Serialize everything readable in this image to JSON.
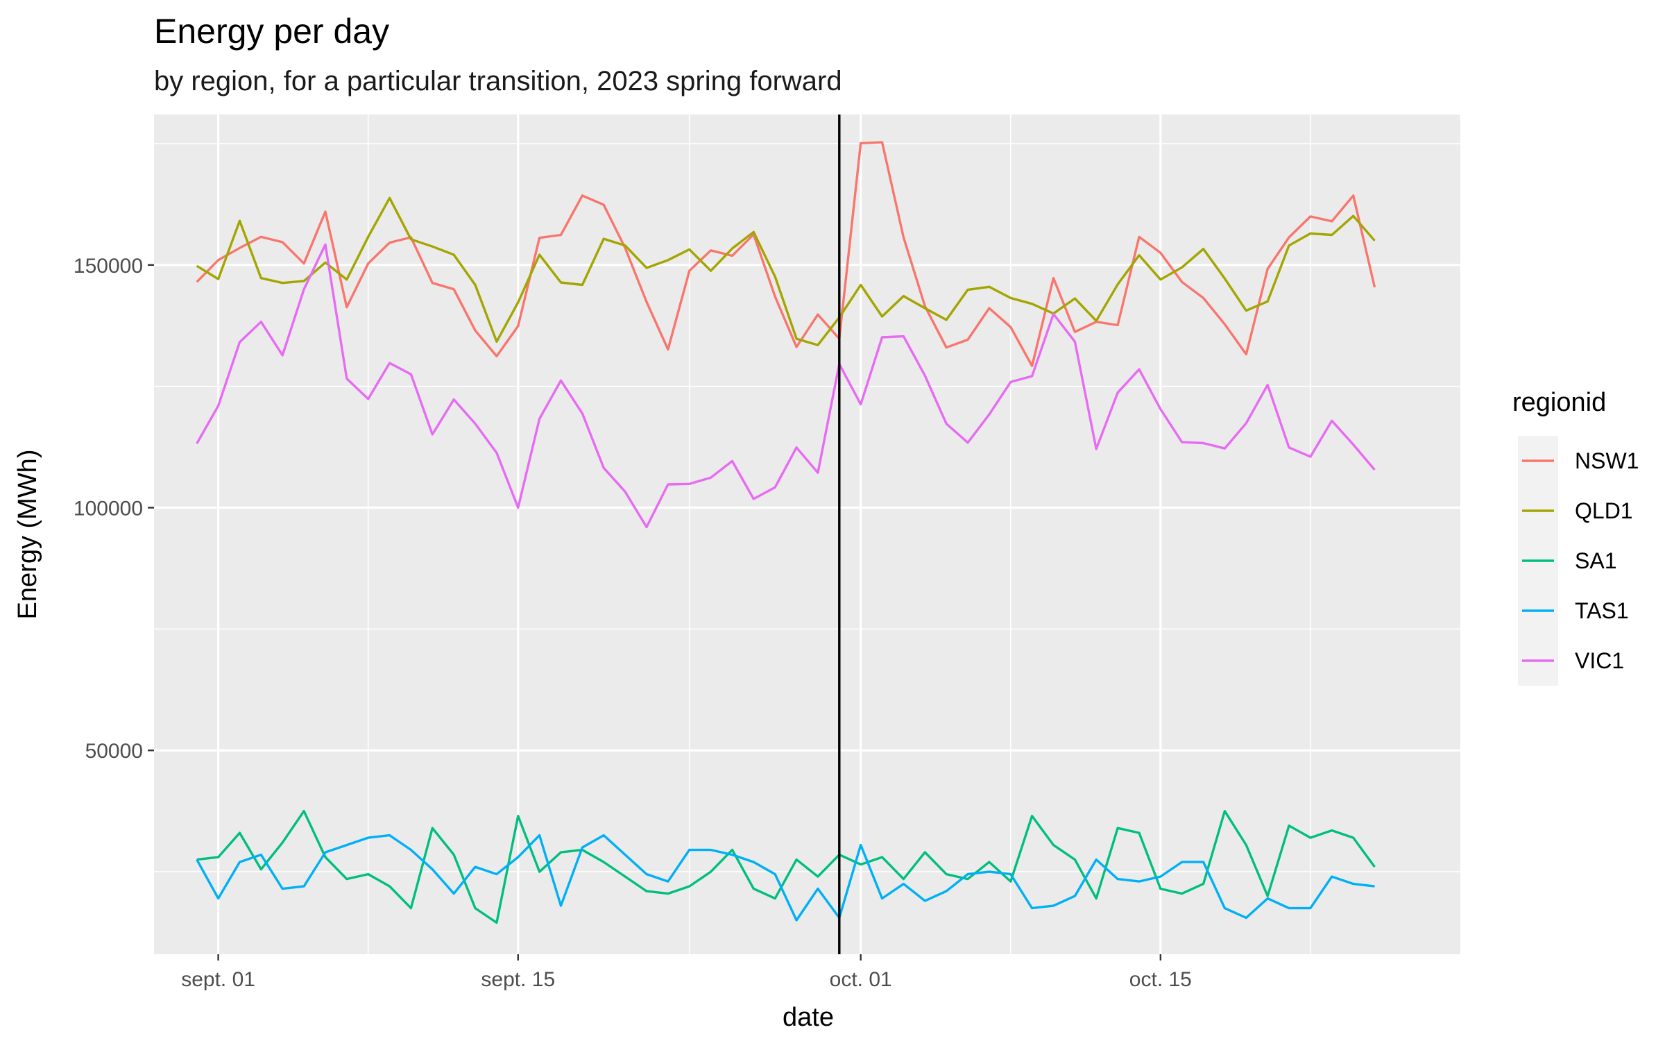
{
  "chart_data": {
    "type": "line",
    "title": "Energy per day",
    "subtitle": "by region, for a particular transition, 2023 spring forward",
    "xlabel": "date",
    "ylabel": "Energy (MWh)",
    "x_start": "2023-08-31",
    "x_end": "2023-10-28",
    "xlim": [
      "2023-08-29",
      "2023-10-29"
    ],
    "ylim": [
      8000,
      181000
    ],
    "x_ticks": [
      {
        "date": "2023-09-01",
        "label": "sept. 01"
      },
      {
        "date": "2023-09-15",
        "label": "sept. 15"
      },
      {
        "date": "2023-10-01",
        "label": "oct. 01"
      },
      {
        "date": "2023-10-15",
        "label": "oct. 15"
      }
    ],
    "x_minor_dates": [
      "2023-08-25",
      "2023-09-08",
      "2023-09-23",
      "2023-10-08",
      "2023-10-22",
      "2023-10-29"
    ],
    "y_ticks": [
      50000,
      100000,
      150000
    ],
    "y_minor": [
      25000,
      75000,
      125000,
      175000
    ],
    "vline_date": "2023-09-30",
    "grid": true,
    "background": "#ebebeb",
    "legend": {
      "title": "regionid",
      "position": "right"
    },
    "series": [
      {
        "name": "NSW1",
        "color": "#F8766D",
        "values": [
          146500,
          151000,
          153500,
          155800,
          154700,
          150300,
          161000,
          141300,
          150300,
          154600,
          155700,
          146300,
          145000,
          136500,
          131200,
          137400,
          155600,
          156200,
          164300,
          162400,
          153500,
          142400,
          132600,
          148800,
          153000,
          151900,
          156300,
          143500,
          133100,
          139800,
          134800,
          175100,
          175300,
          155700,
          141500,
          133000,
          134600,
          141100,
          137200,
          129200,
          147300,
          136200,
          138300,
          137600,
          155800,
          152500,
          146500,
          143200,
          137800,
          131600,
          149200,
          155700,
          160000,
          159000,
          164300,
          145400
        ]
      },
      {
        "name": "QLD1",
        "color": "#A3A500",
        "values": [
          149800,
          147100,
          159100,
          147300,
          146300,
          146700,
          150500,
          147000,
          155800,
          163800,
          155300,
          153800,
          152100,
          145900,
          134200,
          142300,
          152100,
          146400,
          145900,
          155400,
          154000,
          149400,
          151000,
          153200,
          148800,
          153400,
          156800,
          147600,
          134800,
          133500,
          139200,
          145900,
          139400,
          143600,
          141100,
          138700,
          144900,
          145500,
          143200,
          142000,
          140000,
          143100,
          138500,
          146000,
          152000,
          147000,
          149500,
          153300,
          147200,
          140600,
          142500,
          154000,
          156500,
          156200,
          160100,
          155000
        ]
      },
      {
        "name": "SA1",
        "color": "#00BF7D",
        "values": [
          27500,
          28000,
          33000,
          25500,
          31000,
          37500,
          28000,
          23500,
          24500,
          22000,
          17500,
          34000,
          28500,
          17500,
          14500,
          36500,
          25000,
          29000,
          29500,
          27000,
          24000,
          21000,
          20500,
          22000,
          25000,
          29500,
          21500,
          19500,
          27500,
          24000,
          28500,
          26500,
          28000,
          23500,
          29000,
          24500,
          23500,
          27000,
          23000,
          36500,
          30500,
          27500,
          19500,
          34000,
          33000,
          21500,
          20500,
          22500,
          37500,
          30500,
          20000,
          34500,
          32000,
          33500,
          32000,
          26000
        ]
      },
      {
        "name": "TAS1",
        "color": "#00B0F6",
        "values": [
          27500,
          19500,
          27000,
          28500,
          21500,
          22000,
          29000,
          30500,
          32000,
          32500,
          29500,
          25500,
          20500,
          26000,
          24500,
          28000,
          32500,
          18000,
          30000,
          32500,
          28500,
          24500,
          23000,
          29500,
          29500,
          28500,
          27000,
          24500,
          15000,
          21500,
          15500,
          30500,
          19500,
          22500,
          19000,
          21000,
          24500,
          25000,
          24500,
          17500,
          18000,
          20000,
          27500,
          23500,
          23000,
          24000,
          27000,
          27000,
          17500,
          15500,
          19500,
          17500,
          17500,
          24000,
          22500,
          22000
        ]
      },
      {
        "name": "VIC1",
        "color": "#E76BF3",
        "values": [
          113200,
          121000,
          134100,
          138300,
          131400,
          145000,
          154200,
          126600,
          122400,
          129800,
          127500,
          115100,
          122300,
          117300,
          111300,
          100000,
          118300,
          126200,
          119400,
          108200,
          103300,
          96000,
          104800,
          104900,
          106200,
          109600,
          101800,
          104200,
          112400,
          107200,
          129600,
          121300,
          135100,
          135300,
          127200,
          117300,
          113400,
          119200,
          125900,
          127100,
          139900,
          134200,
          112100,
          123700,
          128500,
          120300,
          113500,
          113300,
          112200,
          117400,
          125300,
          112400,
          110500,
          117900,
          113000,
          107800
        ]
      }
    ]
  }
}
